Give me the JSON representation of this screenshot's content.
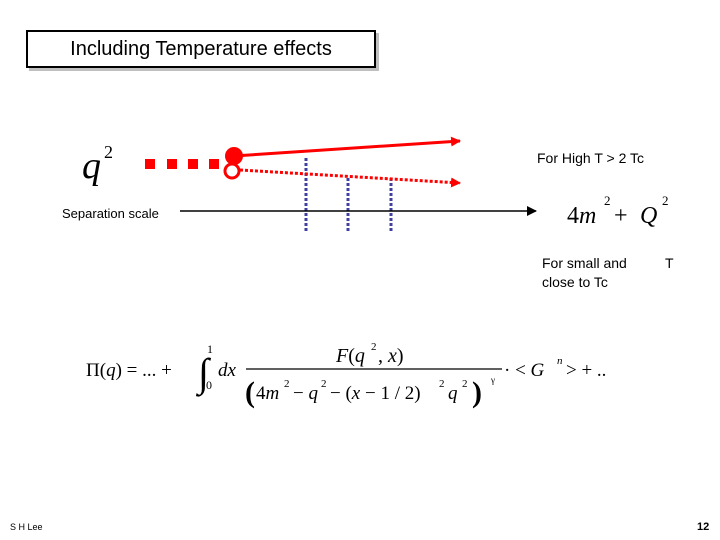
{
  "title": "Including Temperature effects",
  "labels": {
    "high_t": "For High T > 2 Tc",
    "separation": "Separation scale",
    "small_close_line1": "For small and",
    "small_close_t": "T",
    "small_close_line2": "close to Tc"
  },
  "math": {
    "q2": "q²",
    "threshold": "4m² + Q²",
    "pi_lhs": "Π(q) = ... +",
    "integral_upper": "1",
    "integral_lower": "0",
    "dx": "dx",
    "numerator": "F(q², x)",
    "denominator": "(4m² − q² − (x − 1/2)² q²)",
    "tail": "· < Gⁿ > + ..",
    "n_superscript": "n"
  },
  "footer": {
    "author": "S H Lee",
    "page_number": "12"
  },
  "colors": {
    "red": "#ff0000",
    "blue_dotted": "#4040a0",
    "black": "#000000"
  }
}
